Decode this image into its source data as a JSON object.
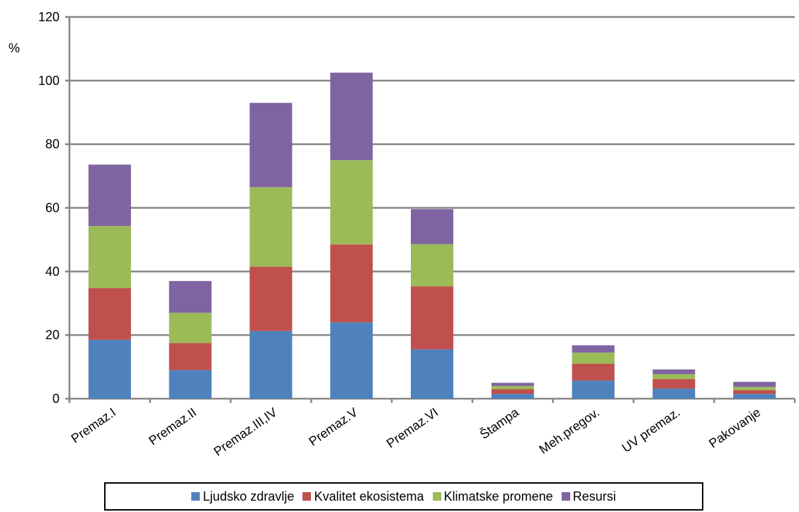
{
  "chart_data": {
    "type": "bar",
    "stacked": true,
    "ylabel": "%",
    "ylim": [
      0,
      120
    ],
    "yticks": [
      0,
      20,
      40,
      60,
      80,
      100,
      120
    ],
    "grid": true,
    "legend_position": "bottom",
    "categories": [
      "Premaz.I",
      "Premaz.II",
      "Premaz.III,IV",
      "Premaz.V",
      "Premaz.VI",
      "Štampa",
      "Meh.pregov.",
      "UV premaz.",
      "Pakovanje"
    ],
    "series": [
      {
        "name": "Ljudsko zdravlje",
        "color": "#4f81bd",
        "values": [
          18.5,
          9,
          21.3,
          24,
          15.5,
          1.5,
          5.7,
          3.2,
          1.5
        ]
      },
      {
        "name": "Kvalitet ekosistema",
        "color": "#c0504d",
        "values": [
          16.3,
          8.5,
          20.2,
          24.5,
          19.8,
          1.5,
          5.3,
          3,
          1.2
        ]
      },
      {
        "name": "Klimatske promene",
        "color": "#9bbb59",
        "values": [
          19.5,
          9.5,
          25,
          26.5,
          13.3,
          1,
          3.5,
          1.5,
          1
        ]
      },
      {
        "name": "Resursi",
        "color": "#8064a2",
        "values": [
          19.3,
          10,
          26.5,
          27.5,
          11,
          1,
          2.3,
          1.5,
          1.6
        ]
      }
    ]
  }
}
